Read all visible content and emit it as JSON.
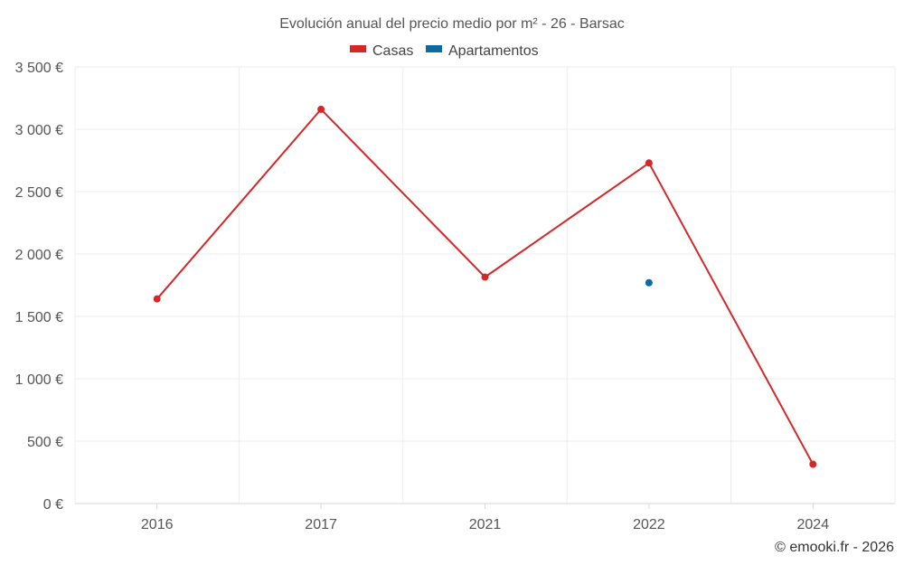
{
  "chart_data": {
    "type": "line",
    "title": "Evolución anual del precio medio por m² - 26 - Barsac",
    "categories": [
      "2016",
      "2017",
      "2021",
      "2022",
      "2024"
    ],
    "series": [
      {
        "name": "Casas",
        "color": "#d62728",
        "values": [
          1640,
          3160,
          1815,
          2730,
          315
        ]
      },
      {
        "name": "Apartamentos",
        "color": "#0f6aa3",
        "values": [
          null,
          null,
          null,
          1770,
          null
        ]
      }
    ],
    "y_ticks": [
      "0 €",
      "500 €",
      "1 000 €",
      "1 500 €",
      "2 000 €",
      "2 500 €",
      "3 000 €",
      "3 500 €"
    ],
    "ylim": [
      0,
      3500
    ],
    "legend_position": "top-center",
    "grid": true
  },
  "credit": "© emooki.fr - 2026"
}
